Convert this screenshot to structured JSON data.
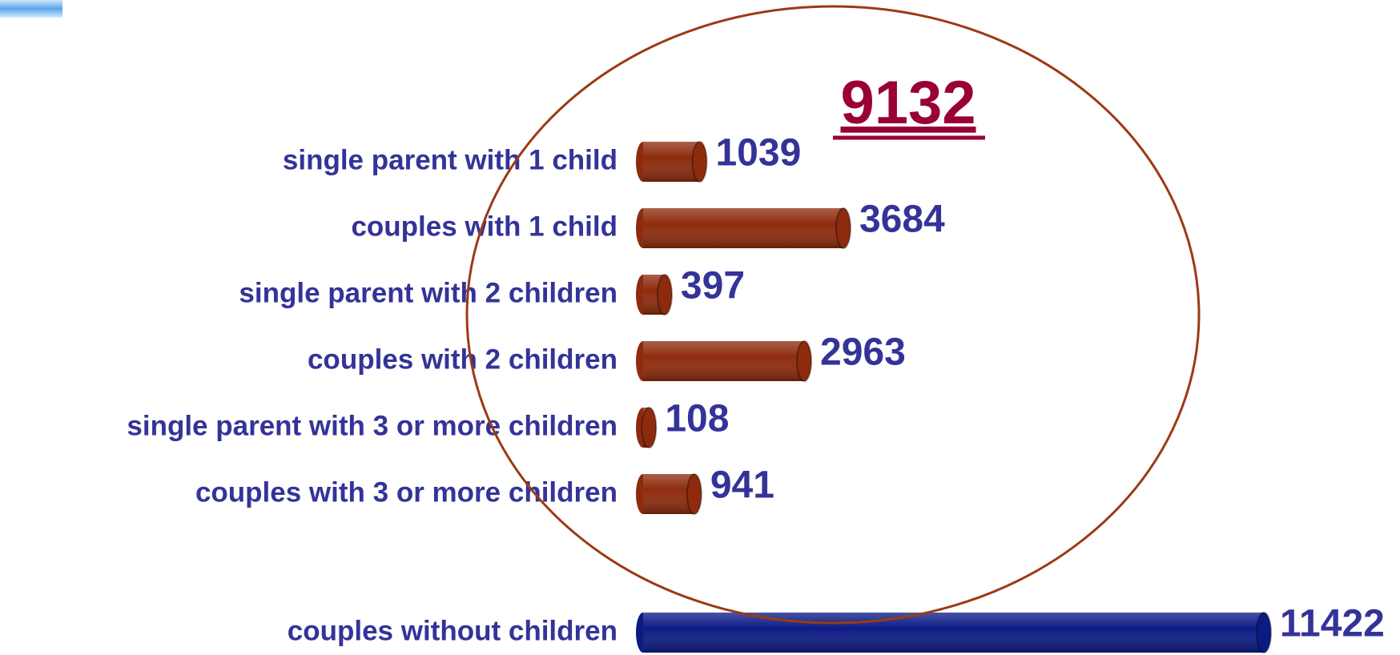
{
  "chart_data": {
    "type": "bar",
    "orientation": "horizontal",
    "annotation": 9132,
    "categories": [
      "single parent with 1 child",
      "couples with 1 child",
      "single parent with 2 children",
      "couples with 2 children",
      "single parent with 3 or more children",
      "couples with 3 or more children",
      "couples without children"
    ],
    "values": [
      1039,
      3684,
      397,
      2963,
      108,
      941,
      11422
    ],
    "colors": [
      "#8e2b0c",
      "#8e2b0c",
      "#8e2b0c",
      "#8e2b0c",
      "#8e2b0c",
      "#8e2b0c",
      "#0c1a84"
    ],
    "label_color": "#333399",
    "annotation_color": "#990033"
  }
}
